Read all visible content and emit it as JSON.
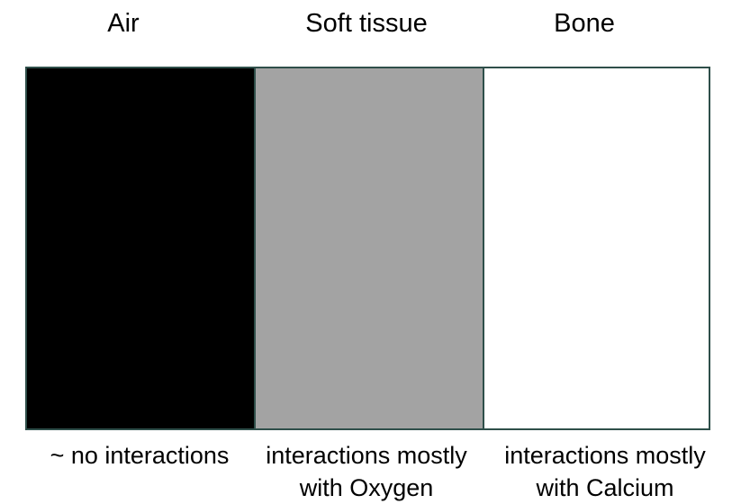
{
  "columns": [
    {
      "heading": "Air",
      "fill": "#000000",
      "caption_line1": "~ no interactions",
      "caption_line2": ""
    },
    {
      "heading": "Soft tissue",
      "fill": "#a3a3a3",
      "caption_line1": "interactions mostly",
      "caption_line2": "with Oxygen"
    },
    {
      "heading": "Bone",
      "fill": "#ffffff",
      "caption_line1": "interactions mostly",
      "caption_line2": "with Calcium"
    }
  ],
  "border_color": "#2f4f4a"
}
